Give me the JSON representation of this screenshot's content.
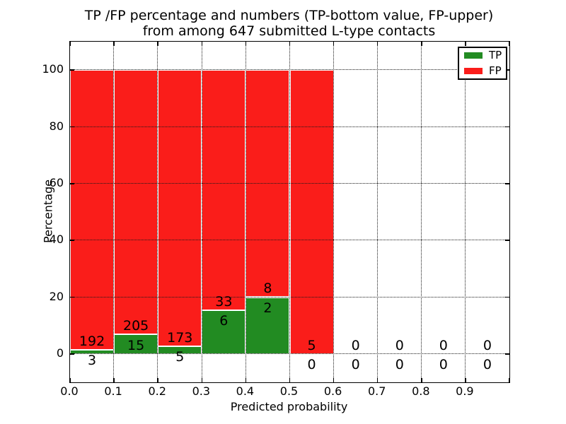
{
  "title": {
    "line1": "TP /FP percentage and numbers (TP-bottom value, FP-upper)",
    "line2": "from among 647 submitted L-type contacts"
  },
  "axes": {
    "xlabel": "Predicted probability",
    "ylabel": "Percentage",
    "x_tick_labels": [
      "0.0",
      "0.1",
      "0.2",
      "0.3",
      "0.4",
      "0.5",
      "0.6",
      "0.7",
      "0.8",
      "0.9"
    ],
    "y_tick_labels": [
      "0",
      "20",
      "40",
      "60",
      "80",
      "100"
    ],
    "y_tick_values": [
      0,
      20,
      40,
      60,
      80,
      100
    ],
    "xlim": [
      0.0,
      1.0
    ],
    "ylim": [
      -10,
      110
    ],
    "grid": "dotted black, on"
  },
  "legend": {
    "position": "upper right",
    "items": [
      {
        "label": "TP",
        "color": "#228b22"
      },
      {
        "label": "FP",
        "color": "#fa1d1a"
      }
    ]
  },
  "chart_data": {
    "type": "bar",
    "stacked": true,
    "normalized_to_percent": true,
    "title": "TP /FP percentage and numbers (TP-bottom value, FP-upper) from among 647 submitted L-type contacts",
    "xlabel": "Predicted probability",
    "ylabel": "Percentage",
    "total_contacts": 647,
    "bin_width": 0.1,
    "bin_starts": [
      0.0,
      0.1,
      0.2,
      0.3,
      0.4,
      0.5,
      0.6,
      0.7,
      0.8,
      0.9
    ],
    "series": [
      {
        "name": "TP",
        "color": "#228b22",
        "counts": [
          3,
          15,
          5,
          6,
          2,
          0,
          0,
          0,
          0,
          0
        ]
      },
      {
        "name": "FP",
        "color": "#fa1d1a",
        "counts": [
          192,
          205,
          173,
          33,
          8,
          5,
          0,
          0,
          0,
          0
        ]
      }
    ],
    "tp_percent": [
      1.5,
      6.8,
      2.8,
      15.4,
      20.0,
      0.0,
      0,
      0,
      0,
      0
    ],
    "fp_percent": [
      98.5,
      93.2,
      97.2,
      84.6,
      80.0,
      100.0,
      0,
      0,
      0,
      0
    ],
    "label_rule": "TP count printed below segment boundary, FP count printed above segment boundary"
  }
}
